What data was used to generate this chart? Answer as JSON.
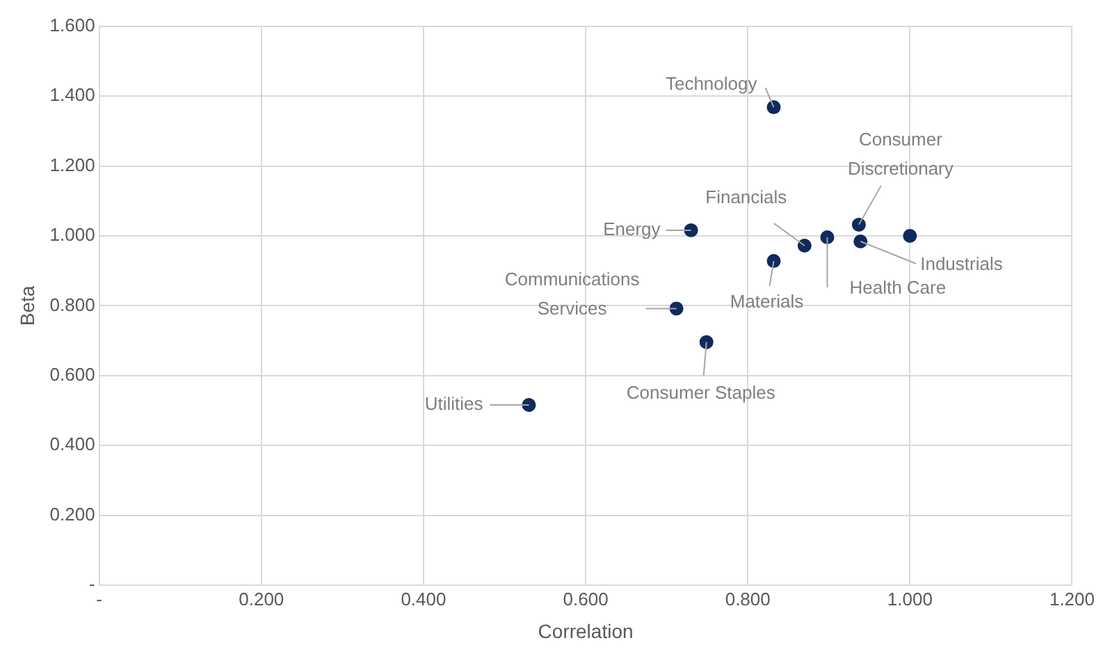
{
  "chart_data": {
    "type": "scatter",
    "xlabel": "Correlation",
    "ylabel": "Beta",
    "x": [
      0.832,
      0.937,
      1.0,
      0.73,
      0.87,
      0.898,
      0.939,
      0.832,
      0.712,
      0.749,
      0.53
    ],
    "series": [
      {
        "color": "#0f2a5c",
        "values": [
          1.368,
          1.032,
          1.0,
          1.016,
          0.972,
          0.996,
          0.984,
          0.928,
          0.792,
          0.696,
          0.516
        ]
      }
    ],
    "annotations": [
      {
        "text": "Technology",
        "x": 0.832,
        "y": 1.368
      },
      {
        "text": "Consumer Discretionary",
        "x": 0.937,
        "y": 1.032
      },
      {
        "text": "Energy",
        "x": 0.73,
        "y": 1.016
      },
      {
        "text": "Financials",
        "x": 0.87,
        "y": 0.972
      },
      {
        "text": "Health Care",
        "x": 0.898,
        "y": 0.996
      },
      {
        "text": "Industrials",
        "x": 0.939,
        "y": 0.984
      },
      {
        "text": "Materials",
        "x": 0.832,
        "y": 0.928
      },
      {
        "text": "Communications Services",
        "x": 0.712,
        "y": 0.792
      },
      {
        "text": "Consumer Staples",
        "x": 0.749,
        "y": 0.696
      },
      {
        "text": "Utilities",
        "x": 0.53,
        "y": 0.516
      }
    ],
    "xlim": [
      0,
      1.2
    ],
    "ylim": [
      0,
      1.6
    ],
    "xticks": [
      {
        "value": 0,
        "label": "-"
      },
      {
        "value": 0.2,
        "label": "0.200"
      },
      {
        "value": 0.4,
        "label": "0.400"
      },
      {
        "value": 0.6,
        "label": "0.600"
      },
      {
        "value": 0.8,
        "label": "0.800"
      },
      {
        "value": 1.0,
        "label": "1.000"
      },
      {
        "value": 1.2,
        "label": "1.200"
      }
    ],
    "yticks": [
      {
        "value": 0,
        "label": "-"
      },
      {
        "value": 0.2,
        "label": "0.200"
      },
      {
        "value": 0.4,
        "label": "0.400"
      },
      {
        "value": 0.6,
        "label": "0.600"
      },
      {
        "value": 0.8,
        "label": "0.800"
      },
      {
        "value": 1.0,
        "label": "1.000"
      },
      {
        "value": 1.2,
        "label": "1.200"
      },
      {
        "value": 1.4,
        "label": "1.400"
      },
      {
        "value": 1.6,
        "label": "1.600"
      }
    ],
    "grid": true,
    "marker": "circle",
    "legend": false
  }
}
